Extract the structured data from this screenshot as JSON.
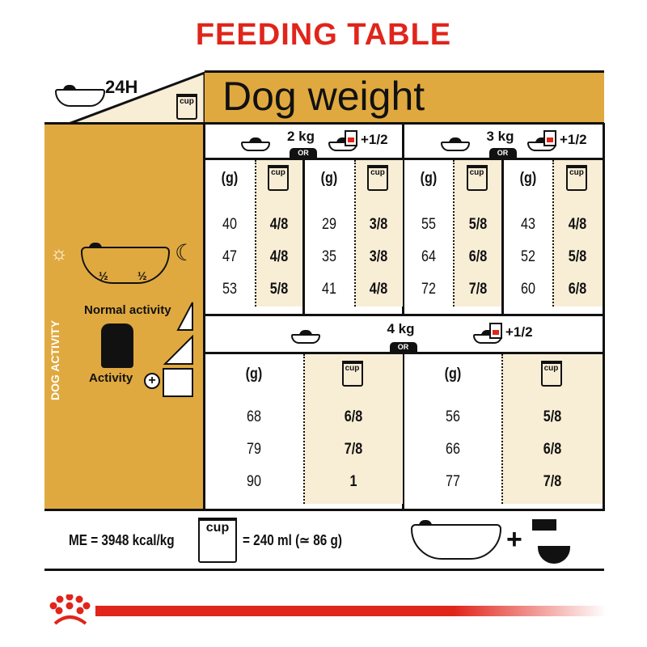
{
  "title": "FEEDING TABLE",
  "header": {
    "period": "24H",
    "weight_label": "Dog weight",
    "cup_label": "cup"
  },
  "activity": {
    "vertical_label": "DOG ACTIVITY",
    "normal": "Normal activity",
    "active": "Activity",
    "half": "½"
  },
  "or_label": "OR",
  "mix_suffix": "+1/2",
  "col_g": "(g)",
  "sections": [
    {
      "weight": "2 kg",
      "dry": [
        "40",
        "47",
        "53"
      ],
      "dry_cups": [
        "4/8",
        "4/8",
        "5/8"
      ],
      "mix": [
        "29",
        "35",
        "41"
      ],
      "mix_cups": [
        "3/8",
        "3/8",
        "4/8"
      ]
    },
    {
      "weight": "3 kg",
      "dry": [
        "55",
        "64",
        "72"
      ],
      "dry_cups": [
        "5/8",
        "6/8",
        "7/8"
      ],
      "mix": [
        "43",
        "52",
        "60"
      ],
      "mix_cups": [
        "4/8",
        "5/8",
        "6/8"
      ]
    },
    {
      "weight": "4 kg",
      "dry": [
        "68",
        "79",
        "90"
      ],
      "dry_cups": [
        "6/8",
        "7/8",
        "1"
      ],
      "mix": [
        "56",
        "66",
        "77"
      ],
      "mix_cups": [
        "5/8",
        "6/8",
        "7/8"
      ]
    }
  ],
  "footer": {
    "energy": "ME = 3948 kcal/kg",
    "cup_equiv": "= 240 ml (≃ 86 g)",
    "plus": "+"
  },
  "colors": {
    "brand_red": "#e0251b",
    "gold": "#e0a93f",
    "cream": "#f8edd5"
  }
}
